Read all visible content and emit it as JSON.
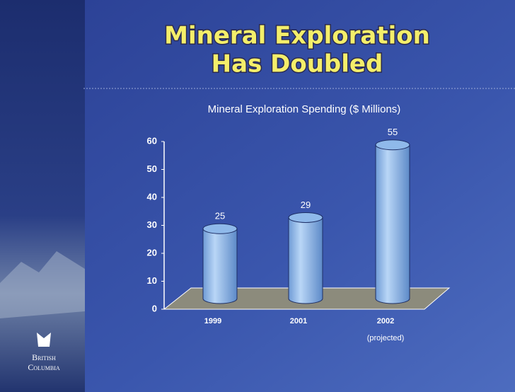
{
  "chart_data": {
    "type": "bar",
    "title": [
      "Mineral Exploration",
      "Has Doubled"
    ],
    "subtitle": "Mineral Exploration Spending ($ Millions)",
    "categories": [
      "1999",
      "2001",
      "2002"
    ],
    "category_notes": [
      null,
      null,
      "(projected)"
    ],
    "values": [
      25,
      29,
      55
    ],
    "color": "#8fb9ea",
    "ylim": [
      0,
      60
    ],
    "yticks": [
      0,
      10,
      20,
      30,
      40,
      50,
      60
    ],
    "grid": false
  },
  "logo": {
    "line1": "British",
    "line2": "Columbia"
  }
}
